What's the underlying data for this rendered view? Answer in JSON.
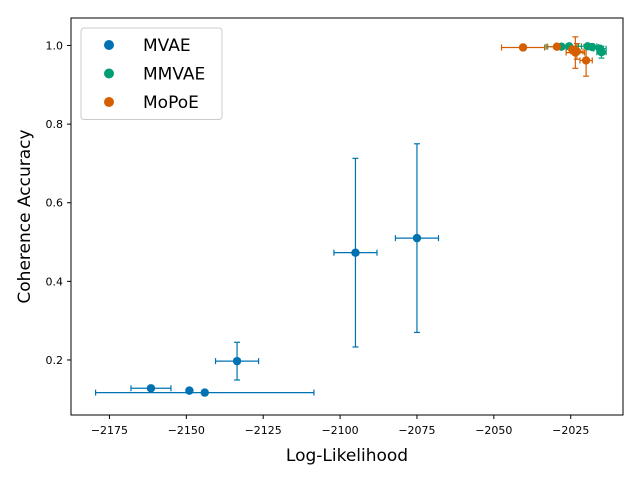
{
  "chart_data": {
    "type": "scatter",
    "title": "",
    "xlabel": "Log-Likelihood",
    "ylabel": "Coherence Accuracy",
    "xlim": [
      -2187.5,
      -2008
    ],
    "ylim": [
      0.06,
      1.07
    ],
    "xticks": [
      -2175,
      -2150,
      -2125,
      -2100,
      -2075,
      -2050,
      -2025
    ],
    "xtick_labels": [
      "−2175",
      "−2150",
      "−2125",
      "−2100",
      "−2075",
      "−2050",
      "−2025"
    ],
    "yticks": [
      0.2,
      0.4,
      0.6,
      0.8,
      1.0
    ],
    "ytick_labels": [
      "0.2",
      "0.4",
      "0.6",
      "0.8",
      "1.0"
    ],
    "grid": false,
    "legend_position": "top-left",
    "series": [
      {
        "name": "MVAE",
        "color": "#0072b2",
        "points": [
          {
            "x": -2161.5,
            "y": 0.128,
            "xerr": [
              6.5,
              6.5
            ],
            "yerr": [
              0.004,
              0.004
            ]
          },
          {
            "x": -2149,
            "y": 0.122,
            "xerr": [
              0,
              0
            ],
            "yerr": [
              0.003,
              0.003
            ]
          },
          {
            "x": -2144,
            "y": 0.117,
            "xerr": [
              35.5,
              35.5
            ],
            "yerr": [
              0.003,
              0.003
            ]
          },
          {
            "x": -2133.5,
            "y": 0.197,
            "xerr": [
              7,
              7
            ],
            "yerr": [
              0.048,
              0.048
            ]
          },
          {
            "x": -2095,
            "y": 0.473,
            "xerr": [
              7,
              7
            ],
            "yerr": [
              0.24,
              0.24
            ]
          },
          {
            "x": -2075,
            "y": 0.51,
            "xerr": [
              7,
              7
            ],
            "yerr": [
              0.24,
              0.24
            ]
          }
        ]
      },
      {
        "name": "MMVAE",
        "color": "#009e73",
        "points": [
          {
            "x": -2028,
            "y": 0.997,
            "xerr": [
              5,
              5
            ],
            "yerr": [
              0.004,
              0.004
            ]
          },
          {
            "x": -2025.5,
            "y": 0.998,
            "xerr": [
              4,
              4
            ],
            "yerr": [
              0.003,
              0.003
            ]
          },
          {
            "x": -2019.5,
            "y": 0.998,
            "xerr": [
              3,
              3
            ],
            "yerr": [
              0.004,
              0.004
            ]
          },
          {
            "x": -2018,
            "y": 0.996,
            "xerr": [
              2,
              2
            ],
            "yerr": [
              0.004,
              0.004
            ]
          },
          {
            "x": -2015.5,
            "y": 0.992,
            "xerr": [
              2,
              2
            ],
            "yerr": [
              0.005,
              0.005
            ]
          },
          {
            "x": -2015,
            "y": 0.983,
            "xerr": [
              1.5,
              1.5
            ],
            "yerr": [
              0.015,
              0.015
            ]
          }
        ]
      },
      {
        "name": "MoPoE",
        "color": "#d55e00",
        "points": [
          {
            "x": -2040.5,
            "y": 0.995,
            "xerr": [
              7,
              7
            ],
            "yerr": [
              0.003,
              0.003
            ]
          },
          {
            "x": -2029.5,
            "y": 0.997,
            "xerr": [
              3,
              3
            ],
            "yerr": [
              0.004,
              0.004
            ]
          },
          {
            "x": -2024.5,
            "y": 0.99,
            "xerr": [
              2,
              2
            ],
            "yerr": [
              0.006,
              0.006
            ]
          },
          {
            "x": -2023.5,
            "y": 0.982,
            "xerr": [
              3,
              3
            ],
            "yerr": [
              0.04,
              0.04
            ]
          },
          {
            "x": -2023,
            "y": 0.985,
            "xerr": [
              2,
              2
            ],
            "yerr": [
              0.02,
              0.02
            ]
          },
          {
            "x": -2020,
            "y": 0.962,
            "xerr": [
              2,
              2
            ],
            "yerr": [
              0.04,
              0.04
            ]
          }
        ]
      }
    ]
  }
}
